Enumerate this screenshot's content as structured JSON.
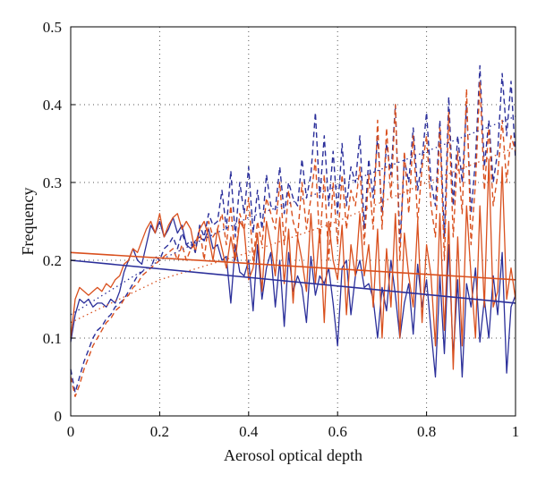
{
  "chart_data": {
    "type": "line",
    "xlabel": "Aerosol optical depth",
    "ylabel": "Frequency",
    "xlim": [
      0,
      1
    ],
    "ylim": [
      0,
      0.5
    ],
    "x_ticks": [
      "0",
      "0.2",
      "0.4",
      "0.6",
      "0.8",
      "1"
    ],
    "y_ticks": [
      "0",
      "0.1",
      "0.2",
      "0.3",
      "0.4",
      "0.5"
    ],
    "grid": "dotted",
    "legend": "none",
    "colors": {
      "blue": "#2b2f9a",
      "orange": "#d9501e"
    },
    "series": [
      {
        "color": "blue",
        "style": "solid",
        "x": [
          0,
          0.01,
          0.02,
          0.03,
          0.04,
          0.05,
          0.06,
          0.07,
          0.08,
          0.09,
          0.1,
          0.11,
          0.12,
          0.13,
          0.14,
          0.15,
          0.16,
          0.17,
          0.18,
          0.19,
          0.2,
          0.21,
          0.22,
          0.23,
          0.24,
          0.25,
          0.26,
          0.27,
          0.28,
          0.29,
          0.3,
          0.31,
          0.32,
          0.33,
          0.34,
          0.35,
          0.36,
          0.37,
          0.38,
          0.39,
          0.4,
          0.41,
          0.42,
          0.43,
          0.44,
          0.45,
          0.46,
          0.47,
          0.48,
          0.49,
          0.5,
          0.51,
          0.52,
          0.53,
          0.54,
          0.55,
          0.56,
          0.57,
          0.58,
          0.59,
          0.6,
          0.61,
          0.62,
          0.63,
          0.64,
          0.65,
          0.66,
          0.67,
          0.68,
          0.69,
          0.7,
          0.71,
          0.72,
          0.73,
          0.74,
          0.75,
          0.76,
          0.77,
          0.78,
          0.79,
          0.8,
          0.81,
          0.82,
          0.83,
          0.84,
          0.85,
          0.86,
          0.87,
          0.88,
          0.89,
          0.9,
          0.91,
          0.92,
          0.93,
          0.94,
          0.95,
          0.96,
          0.97,
          0.98,
          0.99,
          1.0
        ],
        "y": [
          0.095,
          0.13,
          0.15,
          0.145,
          0.15,
          0.14,
          0.145,
          0.145,
          0.14,
          0.15,
          0.145,
          0.16,
          0.185,
          0.2,
          0.215,
          0.2,
          0.195,
          0.22,
          0.245,
          0.235,
          0.25,
          0.23,
          0.24,
          0.255,
          0.235,
          0.245,
          0.22,
          0.215,
          0.225,
          0.23,
          0.225,
          0.24,
          0.215,
          0.22,
          0.2,
          0.205,
          0.145,
          0.22,
          0.185,
          0.18,
          0.2,
          0.135,
          0.22,
          0.15,
          0.19,
          0.21,
          0.14,
          0.2,
          0.115,
          0.21,
          0.16,
          0.18,
          0.165,
          0.12,
          0.205,
          0.155,
          0.18,
          0.17,
          0.19,
          0.145,
          0.09,
          0.19,
          0.2,
          0.13,
          0.18,
          0.2,
          0.165,
          0.17,
          0.15,
          0.1,
          0.165,
          0.135,
          0.2,
          0.155,
          0.1,
          0.145,
          0.17,
          0.105,
          0.195,
          0.14,
          0.175,
          0.11,
          0.05,
          0.18,
          0.08,
          0.22,
          0.075,
          0.175,
          0.05,
          0.17,
          0.14,
          0.19,
          0.095,
          0.15,
          0.1,
          0.18,
          0.13,
          0.21,
          0.055,
          0.14,
          0.155
        ]
      },
      {
        "color": "orange",
        "style": "solid",
        "x": [
          0,
          0.01,
          0.02,
          0.03,
          0.04,
          0.05,
          0.06,
          0.07,
          0.08,
          0.09,
          0.1,
          0.11,
          0.12,
          0.13,
          0.14,
          0.15,
          0.16,
          0.17,
          0.18,
          0.19,
          0.2,
          0.21,
          0.22,
          0.23,
          0.24,
          0.25,
          0.26,
          0.27,
          0.28,
          0.29,
          0.3,
          0.31,
          0.32,
          0.33,
          0.34,
          0.35,
          0.36,
          0.37,
          0.38,
          0.39,
          0.4,
          0.41,
          0.42,
          0.43,
          0.44,
          0.45,
          0.46,
          0.47,
          0.48,
          0.49,
          0.5,
          0.51,
          0.52,
          0.53,
          0.54,
          0.55,
          0.56,
          0.57,
          0.58,
          0.59,
          0.6,
          0.61,
          0.62,
          0.63,
          0.64,
          0.65,
          0.66,
          0.67,
          0.68,
          0.69,
          0.7,
          0.71,
          0.72,
          0.73,
          0.74,
          0.75,
          0.76,
          0.77,
          0.78,
          0.79,
          0.8,
          0.81,
          0.82,
          0.83,
          0.84,
          0.85,
          0.86,
          0.87,
          0.88,
          0.89,
          0.9,
          0.91,
          0.92,
          0.93,
          0.94,
          0.95,
          0.96,
          0.97,
          0.98,
          0.99,
          1.0
        ],
        "y": [
          0.1,
          0.15,
          0.165,
          0.16,
          0.155,
          0.16,
          0.165,
          0.16,
          0.17,
          0.165,
          0.175,
          0.18,
          0.195,
          0.2,
          0.215,
          0.21,
          0.225,
          0.24,
          0.25,
          0.235,
          0.26,
          0.23,
          0.245,
          0.255,
          0.26,
          0.24,
          0.25,
          0.24,
          0.21,
          0.24,
          0.25,
          0.23,
          0.2,
          0.24,
          0.215,
          0.19,
          0.23,
          0.2,
          0.25,
          0.24,
          0.175,
          0.19,
          0.235,
          0.16,
          0.25,
          0.22,
          0.18,
          0.255,
          0.17,
          0.24,
          0.145,
          0.23,
          0.2,
          0.16,
          0.26,
          0.17,
          0.24,
          0.12,
          0.25,
          0.2,
          0.175,
          0.245,
          0.13,
          0.22,
          0.18,
          0.26,
          0.18,
          0.22,
          0.14,
          0.24,
          0.1,
          0.215,
          0.14,
          0.26,
          0.1,
          0.235,
          0.18,
          0.14,
          0.25,
          0.12,
          0.22,
          0.18,
          0.09,
          0.26,
          0.11,
          0.25,
          0.06,
          0.23,
          0.09,
          0.27,
          0.18,
          0.1,
          0.27,
          0.14,
          0.33,
          0.14,
          0.16,
          0.32,
          0.15,
          0.19,
          0.15
        ]
      },
      {
        "color": "blue",
        "style": "dashed",
        "x": [
          0,
          0.01,
          0.02,
          0.03,
          0.04,
          0.05,
          0.06,
          0.07,
          0.08,
          0.09,
          0.1,
          0.11,
          0.12,
          0.13,
          0.14,
          0.15,
          0.16,
          0.17,
          0.18,
          0.19,
          0.2,
          0.21,
          0.22,
          0.23,
          0.24,
          0.25,
          0.26,
          0.27,
          0.28,
          0.29,
          0.3,
          0.31,
          0.32,
          0.33,
          0.34,
          0.35,
          0.36,
          0.37,
          0.38,
          0.39,
          0.4,
          0.41,
          0.42,
          0.43,
          0.44,
          0.45,
          0.46,
          0.47,
          0.48,
          0.49,
          0.5,
          0.51,
          0.52,
          0.53,
          0.54,
          0.55,
          0.56,
          0.57,
          0.58,
          0.59,
          0.6,
          0.61,
          0.62,
          0.63,
          0.64,
          0.65,
          0.66,
          0.67,
          0.68,
          0.69,
          0.7,
          0.71,
          0.72,
          0.73,
          0.74,
          0.75,
          0.76,
          0.77,
          0.78,
          0.79,
          0.8,
          0.81,
          0.82,
          0.83,
          0.84,
          0.85,
          0.86,
          0.87,
          0.88,
          0.89,
          0.9,
          0.91,
          0.92,
          0.93,
          0.94,
          0.95,
          0.96,
          0.97,
          0.98,
          0.99,
          1.0
        ],
        "y": [
          0.06,
          0.03,
          0.05,
          0.07,
          0.085,
          0.1,
          0.11,
          0.115,
          0.125,
          0.13,
          0.14,
          0.145,
          0.15,
          0.16,
          0.17,
          0.18,
          0.185,
          0.19,
          0.19,
          0.205,
          0.2,
          0.215,
          0.22,
          0.23,
          0.215,
          0.235,
          0.22,
          0.225,
          0.21,
          0.245,
          0.23,
          0.26,
          0.245,
          0.25,
          0.29,
          0.24,
          0.315,
          0.23,
          0.3,
          0.26,
          0.32,
          0.235,
          0.29,
          0.24,
          0.31,
          0.27,
          0.265,
          0.32,
          0.26,
          0.3,
          0.28,
          0.27,
          0.33,
          0.28,
          0.31,
          0.39,
          0.28,
          0.36,
          0.27,
          0.34,
          0.26,
          0.35,
          0.27,
          0.32,
          0.3,
          0.36,
          0.24,
          0.33,
          0.28,
          0.36,
          0.26,
          0.35,
          0.31,
          0.4,
          0.22,
          0.33,
          0.3,
          0.37,
          0.29,
          0.33,
          0.39,
          0.3,
          0.27,
          0.38,
          0.23,
          0.41,
          0.27,
          0.36,
          0.3,
          0.4,
          0.26,
          0.33,
          0.45,
          0.32,
          0.38,
          0.3,
          0.34,
          0.44,
          0.36,
          0.43,
          0.33
        ]
      },
      {
        "color": "orange",
        "style": "dashed",
        "x": [
          0,
          0.01,
          0.02,
          0.03,
          0.04,
          0.05,
          0.06,
          0.07,
          0.08,
          0.09,
          0.1,
          0.11,
          0.12,
          0.13,
          0.14,
          0.15,
          0.16,
          0.17,
          0.18,
          0.19,
          0.2,
          0.21,
          0.22,
          0.23,
          0.24,
          0.25,
          0.26,
          0.27,
          0.28,
          0.29,
          0.3,
          0.31,
          0.32,
          0.33,
          0.34,
          0.35,
          0.36,
          0.37,
          0.38,
          0.39,
          0.4,
          0.41,
          0.42,
          0.43,
          0.44,
          0.45,
          0.46,
          0.47,
          0.48,
          0.49,
          0.5,
          0.51,
          0.52,
          0.53,
          0.54,
          0.55,
          0.56,
          0.57,
          0.58,
          0.59,
          0.6,
          0.61,
          0.62,
          0.63,
          0.64,
          0.65,
          0.66,
          0.67,
          0.68,
          0.69,
          0.7,
          0.71,
          0.72,
          0.73,
          0.74,
          0.75,
          0.76,
          0.77,
          0.78,
          0.79,
          0.8,
          0.81,
          0.82,
          0.83,
          0.84,
          0.85,
          0.86,
          0.87,
          0.88,
          0.89,
          0.9,
          0.91,
          0.92,
          0.93,
          0.94,
          0.95,
          0.96,
          0.97,
          0.98,
          0.99,
          1.0
        ],
        "y": [
          0.05,
          0.025,
          0.04,
          0.06,
          0.075,
          0.09,
          0.1,
          0.11,
          0.12,
          0.125,
          0.135,
          0.14,
          0.15,
          0.155,
          0.165,
          0.17,
          0.18,
          0.185,
          0.19,
          0.195,
          0.2,
          0.205,
          0.21,
          0.215,
          0.2,
          0.22,
          0.2,
          0.215,
          0.22,
          0.24,
          0.2,
          0.25,
          0.23,
          0.24,
          0.26,
          0.22,
          0.27,
          0.2,
          0.26,
          0.24,
          0.28,
          0.2,
          0.25,
          0.22,
          0.28,
          0.26,
          0.24,
          0.3,
          0.22,
          0.29,
          0.25,
          0.23,
          0.3,
          0.24,
          0.28,
          0.33,
          0.22,
          0.31,
          0.2,
          0.3,
          0.22,
          0.31,
          0.24,
          0.29,
          0.27,
          0.32,
          0.22,
          0.31,
          0.24,
          0.38,
          0.24,
          0.37,
          0.28,
          0.4,
          0.2,
          0.34,
          0.26,
          0.36,
          0.25,
          0.32,
          0.36,
          0.27,
          0.23,
          0.37,
          0.2,
          0.39,
          0.23,
          0.34,
          0.26,
          0.42,
          0.22,
          0.3,
          0.43,
          0.29,
          0.37,
          0.27,
          0.31,
          0.38,
          0.3,
          0.36,
          0.34
        ]
      },
      {
        "color": "blue",
        "style": "dotted",
        "x": [
          0,
          0.2,
          0.4,
          0.6,
          0.8,
          1
        ],
        "y": [
          0.13,
          0.2,
          0.255,
          0.295,
          0.34,
          0.385
        ]
      },
      {
        "color": "orange",
        "style": "dotted",
        "x": [
          0,
          0.2,
          0.4,
          0.6,
          0.8,
          1
        ],
        "y": [
          0.12,
          0.175,
          0.21,
          0.25,
          0.3,
          0.345
        ]
      },
      {
        "color": "blue",
        "style": "trend",
        "x": [
          0,
          1
        ],
        "y": [
          0.2,
          0.145
        ]
      },
      {
        "color": "orange",
        "style": "trend",
        "x": [
          0,
          1
        ],
        "y": [
          0.21,
          0.175
        ]
      }
    ]
  }
}
